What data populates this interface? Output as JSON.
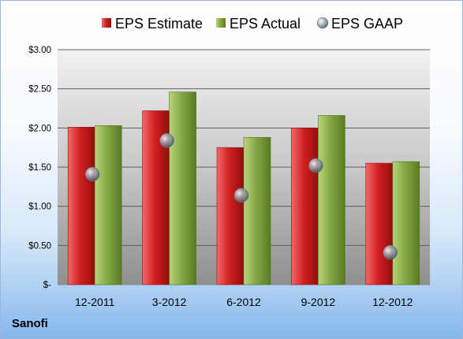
{
  "company": "Sanofi",
  "chart_data": {
    "type": "bar",
    "categories": [
      "12-2011",
      "3-2012",
      "6-2012",
      "9-2012",
      "12-2012"
    ],
    "series": [
      {
        "name": "EPS Estimate",
        "type": "bar",
        "color": "#cc1b1b",
        "values": [
          2.01,
          2.22,
          1.75,
          2.0,
          1.55
        ]
      },
      {
        "name": "EPS Actual",
        "type": "bar",
        "color": "#7fa23a",
        "values": [
          2.03,
          2.46,
          1.88,
          2.16,
          1.57
        ]
      },
      {
        "name": "EPS GAAP",
        "type": "scatter",
        "color": "#9aa7b3",
        "values": [
          1.41,
          1.84,
          1.14,
          1.52,
          0.41
        ]
      }
    ],
    "ylim": [
      0,
      3
    ],
    "yticks": [
      0,
      0.5,
      1,
      1.5,
      2,
      2.5,
      3
    ],
    "ytick_labels": [
      "$-",
      "$0.50",
      "$1.00",
      "$1.50",
      "$2.00",
      "$2.50",
      "$3.00"
    ],
    "grid": true,
    "legend_position": "top"
  }
}
